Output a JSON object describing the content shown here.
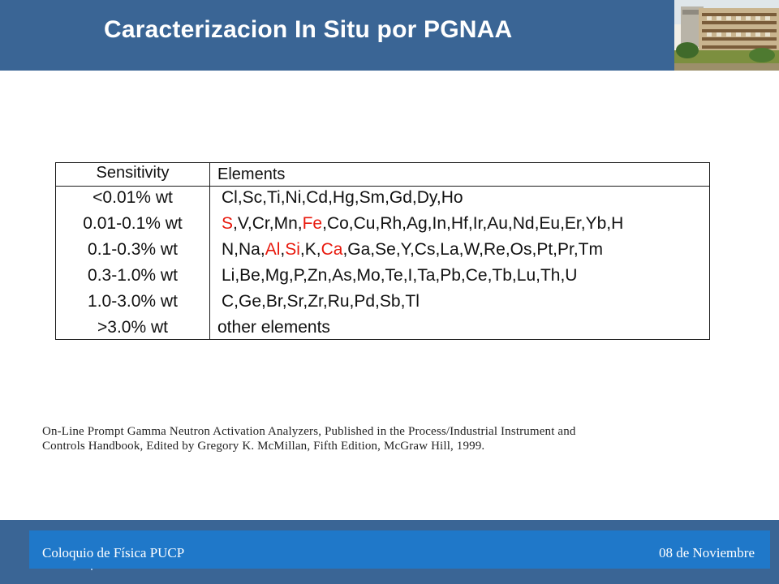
{
  "header": {
    "title": "Caracterizacion In Situ por PGNAA",
    "background_color": "#3a6595",
    "photo_icon": "campus-building-photo"
  },
  "table": {
    "headers": [
      "Sensitivity",
      "Elements"
    ],
    "highlight_color": "#e8180c",
    "rows": [
      {
        "sensitivity": "<0.01% wt",
        "elements": [
          {
            "text": "Cl,Sc,Ti,Ni,Cd,Hg,Sm,Gd,Dy,Ho",
            "highlight": false
          }
        ]
      },
      {
        "sensitivity": "0.01-0.1% wt",
        "elements": [
          {
            "text": "S",
            "highlight": true
          },
          {
            "text": ",V,Cr,Mn,",
            "highlight": false
          },
          {
            "text": "Fe",
            "highlight": true
          },
          {
            "text": ",Co,Cu,Rh,Ag,In,Hf,Ir,Au,Nd,Eu,Er,Yb,H",
            "highlight": false
          }
        ]
      },
      {
        "sensitivity": "0.1-0.3% wt",
        "elements": [
          {
            "text": "N,Na,",
            "highlight": false
          },
          {
            "text": "Al",
            "highlight": true
          },
          {
            "text": ",",
            "highlight": false
          },
          {
            "text": "Si",
            "highlight": true
          },
          {
            "text": ",K,",
            "highlight": false
          },
          {
            "text": "Ca",
            "highlight": true
          },
          {
            "text": ",Ga,Se,Y,Cs,La,W,Re,Os,Pt,Pr,Tm",
            "highlight": false
          }
        ]
      },
      {
        "sensitivity": "0.3-1.0% wt",
        "elements": [
          {
            "text": "Li,Be,Mg,P,Zn,As,Mo,Te,I,Ta,Pb,Ce,Tb,Lu,Th,U",
            "highlight": false
          }
        ]
      },
      {
        "sensitivity": "1.0-3.0% wt",
        "elements": [
          {
            "text": "C,Ge,Br,Sr,Zr,Ru,Pd,Sb,Tl",
            "highlight": false
          }
        ]
      },
      {
        "sensitivity": ">3.0% wt",
        "elements": [
          {
            "text": "other elements",
            "highlight": false
          }
        ]
      }
    ]
  },
  "citation": {
    "line1": "On-Line Prompt Gamma Neutron Activation Analyzers, Published in the Process/Industrial Instrument and",
    "line2": "Controls Handbook, Edited by Gregory K. McMillan, Fifth Edition, McGraw Hill, 1999."
  },
  "footer": {
    "left": "Coloquio de Física PUCP",
    "right": "08 de Noviembre",
    "band_color": "#3a6595",
    "bar_color": "#1f78c9"
  }
}
